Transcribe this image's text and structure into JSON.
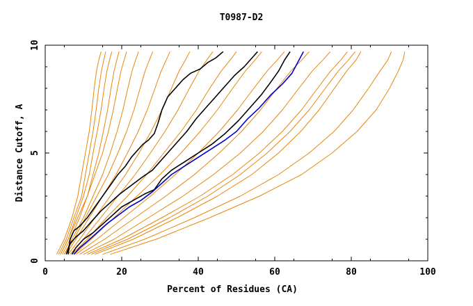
{
  "chart_data": {
    "type": "line",
    "title": "T0987-D2",
    "xlabel": "Percent of Residues (CA)",
    "ylabel": "Distance Cutoff, A",
    "xlim": [
      0,
      100
    ],
    "ylim": [
      0,
      10
    ],
    "xticks": [
      0,
      20,
      40,
      60,
      80,
      100
    ],
    "yticks": [
      0,
      5,
      10
    ],
    "grid": false,
    "legend": "none",
    "colors": {
      "background_models": "#e8860c",
      "highlight_black": "#000000",
      "highlight_blue": "#0000cc"
    },
    "highlight_series": [
      {
        "color": "#000000",
        "x": [
          6.0,
          6.5,
          7.5,
          9,
          11,
          13,
          15,
          17,
          19,
          21,
          22.5,
          24,
          25.5,
          27,
          28.5,
          29.5,
          30.5,
          32,
          34,
          36,
          38,
          40.5,
          42.5,
          44.5,
          46.5
        ],
        "y": [
          0.3,
          1.0,
          1.4,
          1.6,
          2.0,
          2.5,
          3.0,
          3.5,
          4.0,
          4.4,
          4.8,
          5.1,
          5.4,
          5.6,
          5.9,
          6.4,
          7.0,
          7.6,
          8.0,
          8.4,
          8.7,
          8.9,
          9.2,
          9.4,
          9.7
        ]
      },
      {
        "color": "#000000",
        "x": [
          5.5,
          6.5,
          8,
          10,
          12,
          14.5,
          17,
          19.5,
          22.5,
          25.5,
          28,
          30,
          32,
          34.5,
          37,
          39.5,
          42,
          44.5,
          47,
          49.5,
          52,
          54,
          55.5
        ],
        "y": [
          0.3,
          0.8,
          1.1,
          1.4,
          1.8,
          2.3,
          2.7,
          3.1,
          3.5,
          3.9,
          4.2,
          4.6,
          5.0,
          5.5,
          6.0,
          6.6,
          7.1,
          7.6,
          8.1,
          8.6,
          9.0,
          9.4,
          9.7
        ]
      },
      {
        "color": "#000000",
        "x": [
          7.0,
          8,
          10,
          12.5,
          15,
          17.5,
          20,
          23,
          26,
          28.5,
          30.5,
          33,
          36.5,
          40,
          43.5,
          47,
          50.5,
          53.5,
          56.5,
          59,
          61,
          62.5,
          64
        ],
        "y": [
          0.3,
          0.6,
          1.0,
          1.3,
          1.7,
          2.1,
          2.5,
          2.8,
          3.1,
          3.3,
          3.8,
          4.2,
          4.6,
          5.0,
          5.4,
          5.9,
          6.5,
          7.1,
          7.7,
          8.3,
          8.8,
          9.3,
          9.7
        ]
      },
      {
        "color": "#0000cc",
        "x": [
          7.5,
          9,
          11,
          13.5,
          16,
          19,
          22,
          25,
          28,
          30.5,
          33,
          36.5,
          40,
          43.5,
          47,
          50,
          53,
          56,
          59,
          62,
          64.5,
          66,
          67.5
        ],
        "y": [
          0.3,
          0.6,
          0.9,
          1.3,
          1.7,
          2.1,
          2.5,
          2.8,
          3.2,
          3.6,
          4.0,
          4.4,
          4.8,
          5.2,
          5.6,
          6.0,
          6.6,
          7.1,
          7.7,
          8.2,
          8.7,
          9.2,
          9.7
        ]
      }
    ],
    "background_series": [
      {
        "x": [
          3.0,
          5,
          7,
          8.5,
          9.5,
          10.5,
          11.5,
          12.2,
          12.8,
          13.4,
          14.0,
          14.6
        ],
        "y": [
          0.3,
          1.0,
          2.0,
          3.0,
          4.0,
          5.0,
          6.0,
          7.0,
          8.0,
          8.8,
          9.3,
          9.7
        ]
      },
      {
        "x": [
          3.5,
          5.5,
          7.5,
          9.5,
          10.5,
          11.5,
          12.5,
          13.3,
          14.0,
          14.7,
          15.3,
          15.8
        ],
        "y": [
          0.3,
          1.0,
          2.0,
          3.0,
          4.0,
          5.0,
          6.0,
          7.0,
          8.0,
          8.8,
          9.3,
          9.7
        ]
      },
      {
        "x": [
          4.0,
          6,
          8,
          10,
          11.5,
          12.5,
          13.6,
          14.6,
          15.4,
          16.1,
          16.8,
          17.4
        ],
        "y": [
          0.3,
          1.0,
          2.0,
          3.0,
          4.0,
          5.0,
          6.0,
          7.0,
          8.0,
          8.8,
          9.3,
          9.7
        ]
      },
      {
        "x": [
          4.5,
          6.5,
          9,
          11,
          12.5,
          14,
          15.2,
          16.3,
          17.2,
          18.0,
          18.7,
          19.3
        ],
        "y": [
          0.3,
          1.0,
          2.0,
          3.0,
          4.0,
          5.0,
          6.0,
          7.0,
          8.0,
          8.8,
          9.3,
          9.7
        ]
      },
      {
        "x": [
          4.0,
          6,
          8.5,
          11,
          13,
          15,
          16.5,
          17.8,
          18.9,
          19.8,
          20.6,
          21.3
        ],
        "y": [
          0.3,
          1.0,
          2.0,
          3.0,
          4.0,
          5.0,
          6.0,
          7.0,
          8.0,
          8.8,
          9.3,
          9.7
        ]
      },
      {
        "x": [
          5.0,
          7,
          10,
          12.5,
          15,
          17,
          18.8,
          20.3,
          21.6,
          22.7,
          23.6,
          24.4
        ],
        "y": [
          0.3,
          1.0,
          2.0,
          3.0,
          4.0,
          5.0,
          6.0,
          7.0,
          8.0,
          8.8,
          9.3,
          9.7
        ]
      },
      {
        "x": [
          5.0,
          7.5,
          10.5,
          13.5,
          16.5,
          19,
          21.3,
          23.2,
          24.8,
          26.1,
          27.2,
          28.1
        ],
        "y": [
          0.3,
          1.0,
          2.0,
          3.0,
          4.0,
          5.0,
          6.0,
          7.0,
          8.0,
          8.8,
          9.3,
          9.7
        ]
      },
      {
        "x": [
          5.5,
          8,
          11.5,
          15,
          18.5,
          21.5,
          24.3,
          26.7,
          28.7,
          30.3,
          31.6,
          32.6
        ],
        "y": [
          0.3,
          1.0,
          2.0,
          3.0,
          4.0,
          5.0,
          6.0,
          7.0,
          8.0,
          8.8,
          9.3,
          9.7
        ]
      },
      {
        "x": [
          6.0,
          9,
          13,
          17,
          21,
          24.5,
          27.7,
          30.5,
          33.0,
          35.0,
          36.6,
          37.8
        ],
        "y": [
          0.3,
          1.0,
          2.0,
          3.0,
          4.0,
          5.0,
          6.0,
          7.0,
          8.0,
          8.8,
          9.3,
          9.7
        ]
      },
      {
        "x": [
          6.5,
          10,
          14.5,
          19,
          23.5,
          27.5,
          31.3,
          34.7,
          37.7,
          40.2,
          42.2,
          43.8
        ],
        "y": [
          0.3,
          1.0,
          2.0,
          3.0,
          4.0,
          5.0,
          6.0,
          7.0,
          8.0,
          8.8,
          9.3,
          9.7
        ]
      },
      {
        "x": [
          7.0,
          11,
          16,
          21.5,
          26.5,
          31,
          35.5,
          39.5,
          43.0,
          46.0,
          48.3,
          50.0
        ],
        "y": [
          0.3,
          1.0,
          2.0,
          3.0,
          4.0,
          5.0,
          6.0,
          7.0,
          8.0,
          8.8,
          9.3,
          9.7
        ]
      },
      {
        "x": [
          7.5,
          12,
          18,
          24,
          30,
          35.5,
          40.5,
          45,
          49.0,
          52.3,
          54.8,
          56.6
        ],
        "y": [
          0.3,
          1.0,
          2.0,
          3.0,
          4.0,
          5.0,
          6.0,
          7.0,
          8.0,
          8.8,
          9.3,
          9.7
        ]
      },
      {
        "x": [
          8.0,
          13.5,
          20.5,
          27.5,
          34,
          40,
          45.5,
          50.3,
          54.5,
          58.0,
          60.6,
          62.5
        ],
        "y": [
          0.3,
          1.0,
          2.0,
          3.0,
          4.0,
          5.0,
          6.0,
          7.0,
          8.0,
          8.8,
          9.3,
          9.7
        ]
      },
      {
        "x": [
          9.0,
          15.5,
          23.5,
          31.5,
          39,
          45.5,
          51.3,
          56.3,
          60.6,
          64.2,
          67.0,
          69.0
        ],
        "y": [
          0.3,
          1.0,
          2.0,
          3.0,
          4.0,
          5.0,
          6.0,
          7.0,
          8.0,
          8.8,
          9.3,
          9.7
        ]
      },
      {
        "x": [
          10.0,
          18,
          27,
          36,
          44,
          51,
          57.0,
          62.0,
          66.3,
          69.8,
          72.5,
          74.5
        ],
        "y": [
          0.3,
          1.0,
          2.0,
          3.0,
          4.0,
          5.0,
          6.0,
          7.0,
          8.0,
          8.8,
          9.3,
          9.7
        ]
      },
      {
        "x": [
          11.0,
          20,
          30.5,
          40.5,
          49,
          56,
          62.0,
          67.0,
          71.2,
          74.6,
          77.2,
          79.0
        ],
        "y": [
          0.3,
          1.0,
          2.0,
          3.0,
          4.0,
          5.0,
          6.0,
          7.0,
          8.0,
          8.8,
          9.3,
          9.7
        ]
      },
      {
        "x": [
          13.0,
          23,
          34.5,
          45,
          54,
          61,
          66.8,
          71.6,
          75.6,
          78.8,
          81.2,
          82.5
        ],
        "y": [
          0.3,
          1.0,
          2.0,
          3.0,
          4.0,
          5.0,
          6.0,
          7.0,
          8.0,
          8.8,
          9.3,
          9.7
        ]
      },
      {
        "x": [
          15.0,
          26,
          39,
          51,
          61,
          69,
          75.5,
          80.5,
          84.5,
          87.5,
          89.5,
          90.5
        ],
        "y": [
          0.3,
          1.0,
          2.0,
          3.0,
          4.0,
          5.0,
          6.0,
          7.0,
          8.0,
          8.8,
          9.3,
          9.7
        ]
      },
      {
        "x": [
          17.0,
          29,
          43,
          56,
          67,
          75,
          81.5,
          86.5,
          90.0,
          92.3,
          93.5,
          94.0
        ],
        "y": [
          0.3,
          1.0,
          2.0,
          3.0,
          4.0,
          5.0,
          6.0,
          7.0,
          8.0,
          8.8,
          9.3,
          9.7
        ]
      },
      {
        "x": [
          12.0,
          21.5,
          32.5,
          42.5,
          51,
          58,
          64.0,
          69.0,
          73.2,
          76.6,
          79.2,
          81.0
        ],
        "y": [
          0.3,
          1.0,
          2.0,
          3.0,
          4.0,
          5.0,
          6.0,
          7.0,
          8.0,
          8.8,
          9.3,
          9.7
        ]
      }
    ]
  }
}
